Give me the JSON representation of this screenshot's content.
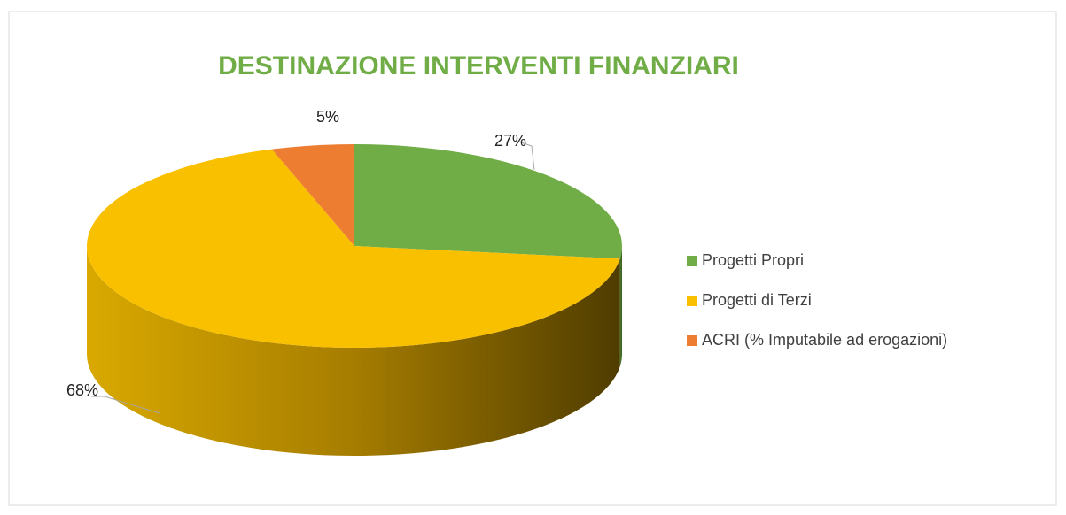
{
  "chart_data": {
    "type": "pie",
    "title": "DESTINAZIONE INTERVENTI FINANZIARI",
    "categories": [
      "Progetti Propri",
      "Progetti di Terzi",
      "ACRI (% Imputabile ad erogazioni)"
    ],
    "values": [
      27,
      68,
      5
    ],
    "value_labels": [
      "27%",
      "68%",
      "5%"
    ],
    "colors": [
      "#70ad47",
      "#f9c000",
      "#ed7d31"
    ],
    "legend": "right"
  }
}
